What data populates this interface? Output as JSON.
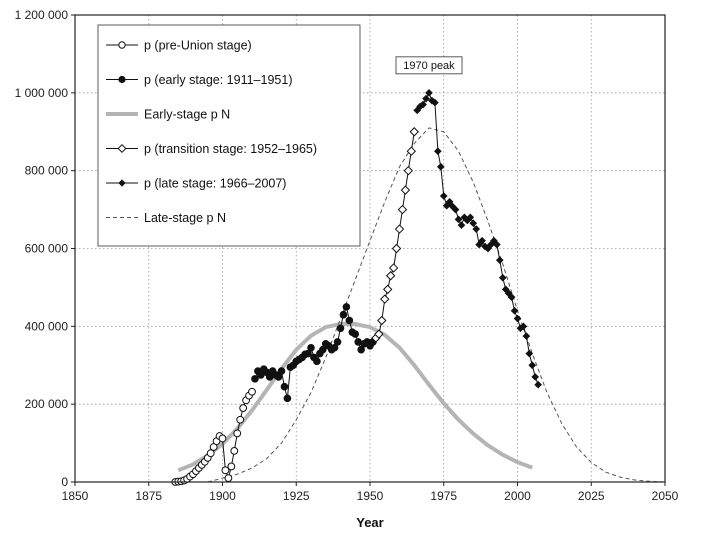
{
  "chart_data": {
    "type": "line",
    "title": "",
    "xlabel": "Year",
    "ylabel": "",
    "xlim": [
      1850,
      2050
    ],
    "ylim": [
      0,
      1200000
    ],
    "x_ticks": [
      "1850",
      "1875",
      "1900",
      "1925",
      "1950",
      "1975",
      "2000",
      "2025",
      "2050"
    ],
    "y_ticks": [
      "0",
      "200 000",
      "400 000",
      "600 000",
      "800 000",
      "1 000 000",
      "1 200 000"
    ],
    "grid": true,
    "legend_position": "top-left",
    "annotation": {
      "text": "1970 peak",
      "x": 1970,
      "y": 1000000
    },
    "series": [
      {
        "name": "p (pre-Union stage)",
        "style": "line-open-circle",
        "color": "#111111",
        "points": [
          [
            1884,
            0
          ],
          [
            1885,
            1000
          ],
          [
            1886,
            2000
          ],
          [
            1887,
            4000
          ],
          [
            1888,
            8000
          ],
          [
            1889,
            14000
          ],
          [
            1890,
            20000
          ],
          [
            1891,
            28000
          ],
          [
            1892,
            36000
          ],
          [
            1893,
            44000
          ],
          [
            1894,
            52000
          ],
          [
            1895,
            62000
          ],
          [
            1896,
            74000
          ],
          [
            1897,
            90000
          ],
          [
            1898,
            105000
          ],
          [
            1899,
            118000
          ],
          [
            1900,
            112000
          ],
          [
            1901,
            30000
          ],
          [
            1902,
            10000
          ],
          [
            1903,
            40000
          ],
          [
            1904,
            80000
          ],
          [
            1905,
            125000
          ],
          [
            1906,
            160000
          ],
          [
            1907,
            190000
          ],
          [
            1908,
            210000
          ],
          [
            1909,
            222000
          ],
          [
            1910,
            232000
          ]
        ]
      },
      {
        "name": "p (early stage: 1911–1951)",
        "style": "line-filled-circle",
        "color": "#111111",
        "points": [
          [
            1911,
            265000
          ],
          [
            1912,
            285000
          ],
          [
            1913,
            275000
          ],
          [
            1914,
            290000
          ],
          [
            1915,
            282000
          ],
          [
            1916,
            270000
          ],
          [
            1917,
            285000
          ],
          [
            1918,
            275000
          ],
          [
            1919,
            270000
          ],
          [
            1920,
            285000
          ],
          [
            1921,
            245000
          ],
          [
            1922,
            215000
          ],
          [
            1923,
            295000
          ],
          [
            1924,
            300000
          ],
          [
            1925,
            310000
          ],
          [
            1926,
            315000
          ],
          [
            1927,
            320000
          ],
          [
            1928,
            328000
          ],
          [
            1929,
            330000
          ],
          [
            1930,
            345000
          ],
          [
            1931,
            320000
          ],
          [
            1932,
            310000
          ],
          [
            1933,
            330000
          ],
          [
            1934,
            340000
          ],
          [
            1935,
            355000
          ],
          [
            1936,
            350000
          ],
          [
            1937,
            340000
          ],
          [
            1938,
            345000
          ],
          [
            1939,
            360000
          ],
          [
            1940,
            395000
          ],
          [
            1941,
            430000
          ],
          [
            1942,
            450000
          ],
          [
            1943,
            415000
          ],
          [
            1944,
            385000
          ],
          [
            1945,
            380000
          ],
          [
            1946,
            360000
          ],
          [
            1947,
            340000
          ],
          [
            1948,
            355000
          ],
          [
            1949,
            360000
          ],
          [
            1950,
            350000
          ],
          [
            1951,
            360000
          ]
        ]
      },
      {
        "name": "Early-stage p N",
        "style": "thick-gray-line",
        "color": "#b4b4b4",
        "points": [
          [
            1885,
            30000
          ],
          [
            1890,
            45000
          ],
          [
            1895,
            68000
          ],
          [
            1900,
            98000
          ],
          [
            1905,
            137000
          ],
          [
            1910,
            184000
          ],
          [
            1915,
            237000
          ],
          [
            1920,
            291000
          ],
          [
            1925,
            340000
          ],
          [
            1930,
            376000
          ],
          [
            1935,
            398000
          ],
          [
            1940,
            406000
          ],
          [
            1945,
            406000
          ],
          [
            1950,
            398000
          ],
          [
            1955,
            378000
          ],
          [
            1960,
            345000
          ],
          [
            1965,
            300000
          ],
          [
            1970,
            250000
          ],
          [
            1975,
            202000
          ],
          [
            1980,
            160000
          ],
          [
            1985,
            124000
          ],
          [
            1990,
            94000
          ],
          [
            1995,
            70000
          ],
          [
            2000,
            51000
          ],
          [
            2005,
            37000
          ]
        ]
      },
      {
        "name": "p (transition stage: 1952–1965)",
        "style": "line-open-diamond",
        "color": "#111111",
        "points": [
          [
            1952,
            370000
          ],
          [
            1953,
            380000
          ],
          [
            1954,
            415000
          ],
          [
            1955,
            470000
          ],
          [
            1956,
            495000
          ],
          [
            1957,
            530000
          ],
          [
            1958,
            550000
          ],
          [
            1959,
            600000
          ],
          [
            1960,
            650000
          ],
          [
            1961,
            700000
          ],
          [
            1962,
            750000
          ],
          [
            1963,
            800000
          ],
          [
            1964,
            850000
          ],
          [
            1965,
            900000
          ]
        ]
      },
      {
        "name": "p (late stage: 1966–2007)",
        "style": "line-filled-diamond",
        "color": "#111111",
        "points": [
          [
            1966,
            955000
          ],
          [
            1967,
            965000
          ],
          [
            1968,
            970000
          ],
          [
            1969,
            985000
          ],
          [
            1970,
            1000000
          ],
          [
            1971,
            980000
          ],
          [
            1972,
            975000
          ],
          [
            1973,
            850000
          ],
          [
            1974,
            810000
          ],
          [
            1975,
            735000
          ],
          [
            1976,
            710000
          ],
          [
            1977,
            720000
          ],
          [
            1978,
            708000
          ],
          [
            1979,
            700000
          ],
          [
            1980,
            675000
          ],
          [
            1981,
            660000
          ],
          [
            1982,
            680000
          ],
          [
            1983,
            672000
          ],
          [
            1984,
            680000
          ],
          [
            1985,
            665000
          ],
          [
            1986,
            650000
          ],
          [
            1987,
            610000
          ],
          [
            1988,
            620000
          ],
          [
            1989,
            605000
          ],
          [
            1990,
            600000
          ],
          [
            1991,
            610000
          ],
          [
            1992,
            620000
          ],
          [
            1993,
            610000
          ],
          [
            1994,
            570000
          ],
          [
            1995,
            525000
          ],
          [
            1996,
            495000
          ],
          [
            1997,
            485000
          ],
          [
            1998,
            475000
          ],
          [
            1999,
            440000
          ],
          [
            2000,
            420000
          ],
          [
            2001,
            395000
          ],
          [
            2002,
            400000
          ],
          [
            2003,
            375000
          ],
          [
            2004,
            330000
          ],
          [
            2005,
            300000
          ],
          [
            2006,
            270000
          ],
          [
            2007,
            250000
          ]
        ]
      },
      {
        "name": "Late-stage p N",
        "style": "dashed-line",
        "color": "#555555",
        "points": [
          [
            1895,
            0
          ],
          [
            1900,
            10000
          ],
          [
            1905,
            20000
          ],
          [
            1910,
            36000
          ],
          [
            1915,
            60000
          ],
          [
            1920,
            100000
          ],
          [
            1925,
            160000
          ],
          [
            1930,
            230000
          ],
          [
            1935,
            320000
          ],
          [
            1940,
            420000
          ],
          [
            1945,
            520000
          ],
          [
            1950,
            620000
          ],
          [
            1955,
            720000
          ],
          [
            1960,
            810000
          ],
          [
            1965,
            870000
          ],
          [
            1970,
            910000
          ],
          [
            1975,
            900000
          ],
          [
            1980,
            850000
          ],
          [
            1985,
            770000
          ],
          [
            1990,
            670000
          ],
          [
            1995,
            560000
          ],
          [
            2000,
            440000
          ],
          [
            2005,
            330000
          ],
          [
            2010,
            230000
          ],
          [
            2015,
            150000
          ],
          [
            2020,
            90000
          ],
          [
            2025,
            50000
          ],
          [
            2030,
            25000
          ],
          [
            2035,
            12000
          ],
          [
            2040,
            5000
          ],
          [
            2045,
            1500
          ],
          [
            2050,
            0
          ]
        ]
      }
    ]
  }
}
